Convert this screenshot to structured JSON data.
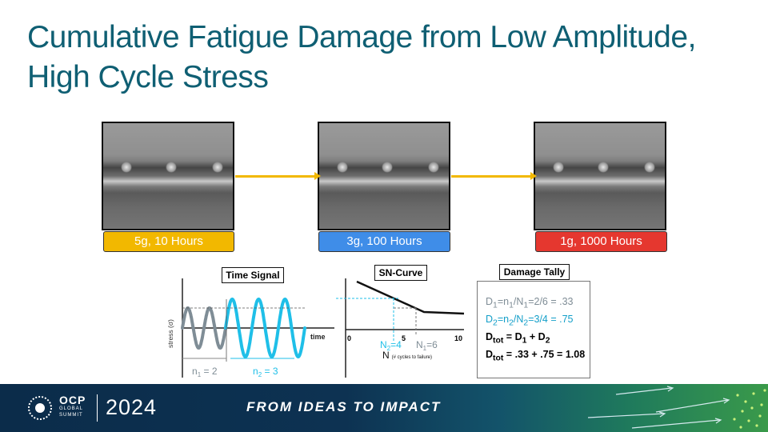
{
  "slide": {
    "title_line1": "Cumulative Fatigue Damage from Low Amplitude,",
    "title_line2": "High Cycle Stress"
  },
  "stages": [
    {
      "label": "5g, 10 Hours",
      "color": "#f2b800"
    },
    {
      "label": "3g, 100 Hours",
      "color": "#3f8de8"
    },
    {
      "label": "1g, 1000 Hours",
      "color": "#e5372f"
    }
  ],
  "arrow_color": "#f2b800",
  "time_signal": {
    "label": "Time Signal",
    "y_axis": "stress (σ)",
    "x_axis": "time",
    "n1_prefix": "n",
    "n1_sub": "1",
    "n1_value": " = 2",
    "n2_prefix": "n",
    "n2_sub": "2",
    "n2_value": " = 3",
    "color_gray": "#7f8d96",
    "color_cyan": "#1fbfe8"
  },
  "sn_curve": {
    "label": "SN-Curve",
    "ticks": [
      "0",
      "5",
      "10"
    ],
    "N2_prefix": "N",
    "N2_sub": "2",
    "N2_value": "=4",
    "N1_prefix": "N",
    "N1_sub": "1",
    "N1_value": "=6",
    "axis_letter": "N",
    "axis_note": "(# cycles to failure)"
  },
  "damage_tally": {
    "label": "Damage Tally",
    "d1": {
      "a": "D",
      "a_sub": "1",
      "b": "=n",
      "b_sub": "1",
      "c": "/N",
      "c_sub": "1",
      "d": "=2/6 = .33"
    },
    "d2": {
      "a": "D",
      "a_sub": "2",
      "b": "=n",
      "b_sub": "2",
      "c": "/N",
      "c_sub": "2",
      "d": "=3/4 = .75"
    },
    "dtot1": {
      "a": "D",
      "a_sub": "tot",
      "b": " = D",
      "b_sub": "1",
      "c": " + D",
      "c_sub": "2"
    },
    "dtot2": {
      "a": "D",
      "a_sub": "tot",
      "b": " = .33 + .75 = 1.08"
    }
  },
  "footer": {
    "brand_word": "OCP",
    "brand_line2": "GLOBAL",
    "brand_line3": "SUMMIT",
    "year": "2024",
    "tagline": "FROM IDEAS TO IMPACT"
  }
}
